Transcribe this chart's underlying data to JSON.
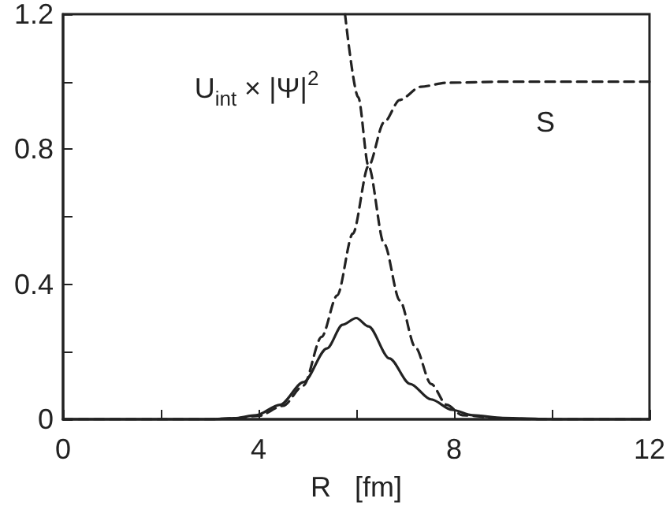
{
  "chart_data": {
    "type": "line",
    "xlabel": "R   [fm]",
    "xlim": [
      0,
      12
    ],
    "xticks": [
      0,
      {
        "value": 2,
        "label": null
      },
      4,
      {
        "value": 6,
        "label": null
      },
      8,
      {
        "value": 10,
        "label": null
      },
      12
    ],
    "ylim": [
      0,
      1.2
    ],
    "yticks": [
      0,
      {
        "value": 0.2,
        "label": null
      },
      0.4,
      {
        "value": 0.6,
        "label": null
      },
      0.8,
      {
        "value": 1.0,
        "label": null
      },
      1.2
    ],
    "grid": false,
    "marker": "none",
    "series": [
      {
        "color": "#222222",
        "line_style": "dashed",
        "x": [
          0,
          2,
          3,
          3.5,
          4,
          4.5,
          4.92,
          5.29,
          5.61,
          5.93,
          6.25,
          6.57,
          6.89,
          7.32,
          7.85,
          9,
          12
        ],
        "values": [
          0,
          0,
          0,
          0.003,
          0.01,
          0.04,
          0.1,
          0.244,
          0.367,
          0.55,
          0.75,
          0.88,
          0.946,
          0.985,
          0.997,
          1,
          1
        ]
      },
      {
        "color": "#222222",
        "line_style": "dashed",
        "x": [
          5.77,
          6.04,
          6.25,
          6.57,
          6.89,
          7.21,
          7.53,
          7.85,
          8.17,
          9,
          10,
          12
        ],
        "values": [
          1.2,
          0.954,
          0.75,
          0.52,
          0.352,
          0.213,
          0.105,
          0.043,
          0.012,
          0.002,
          0,
          0
        ]
      },
      {
        "color": "#222222",
        "line_style": "solid",
        "x": [
          0,
          2,
          3,
          3.5,
          3.95,
          4.44,
          4.92,
          5.4,
          5.72,
          6.0,
          6.25,
          6.68,
          7.1,
          7.53,
          7.96,
          8.38,
          9,
          10,
          12
        ],
        "values": [
          0,
          0,
          0,
          0.003,
          0.012,
          0.043,
          0.11,
          0.21,
          0.28,
          0.3,
          0.275,
          0.18,
          0.105,
          0.059,
          0.028,
          0.012,
          0.004,
          0,
          0
        ]
      }
    ],
    "annotations": [
      "U$_{int}$ × |Ψ|$^{2}$",
      "S"
    ]
  }
}
